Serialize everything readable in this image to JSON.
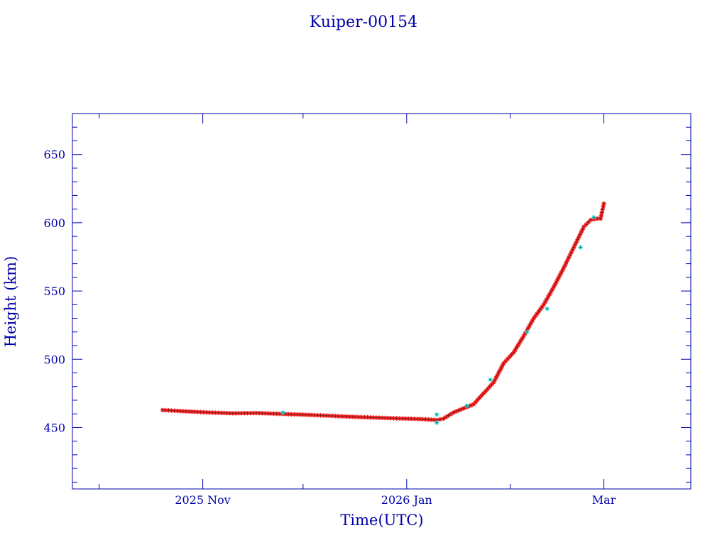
{
  "chart_data": {
    "type": "scatter",
    "title": "Kuiper-00154",
    "xlabel": "Time(UTC)",
    "ylabel": "Height (km)",
    "x_axis": {
      "type": "date",
      "range": [
        "2025-09-23",
        "2026-03-27"
      ],
      "major_ticks": [
        {
          "date": "2025-11-01",
          "label": "2025 Nov"
        },
        {
          "date": "2026-01-01",
          "label": "2026 Jan"
        },
        {
          "date": "2026-03-01",
          "label": "Mar"
        }
      ],
      "minor_ticks": [
        "2025-10-01",
        "2025-12-01",
        "2026-02-01"
      ]
    },
    "ylim": [
      405,
      680
    ],
    "y_major_ticks": [
      450,
      500,
      550,
      600,
      650
    ],
    "y_minor_step": 10,
    "grid": false,
    "colors": {
      "frame": "#0000aa",
      "primary": "#ee1111",
      "secondary": "#22dddd",
      "marker_center": "#333333"
    },
    "series": [
      {
        "marker": "asterisk",
        "color": "#ee1111",
        "points": [
          [
            "2025-10-20",
            462.8
          ],
          [
            "2025-10-27",
            461.8
          ],
          [
            "2025-11-03",
            461.0
          ],
          [
            "2025-11-10",
            460.4
          ],
          [
            "2025-11-17",
            460.6
          ],
          [
            "2025-11-24",
            460.0
          ],
          [
            "2025-12-01",
            459.4
          ],
          [
            "2025-12-08",
            458.7
          ],
          [
            "2025-12-15",
            457.9
          ],
          [
            "2025-12-22",
            457.3
          ],
          [
            "2025-12-29",
            456.7
          ],
          [
            "2026-01-05",
            456.2
          ],
          [
            "2026-01-10",
            455.5
          ],
          [
            "2026-01-12",
            456.5
          ],
          [
            "2026-01-15",
            461.0
          ],
          [
            "2026-01-18",
            464.0
          ],
          [
            "2026-01-21",
            467.0
          ],
          [
            "2026-01-24",
            475.0
          ],
          [
            "2026-01-27",
            483.0
          ],
          [
            "2026-01-30",
            497.0
          ],
          [
            "2026-02-02",
            505.0
          ],
          [
            "2026-02-05",
            517.0
          ],
          [
            "2026-02-08",
            530.0
          ],
          [
            "2026-02-11",
            540.0
          ],
          [
            "2026-02-14",
            553.0
          ],
          [
            "2026-02-17",
            567.0
          ],
          [
            "2026-02-20",
            582.0
          ],
          [
            "2026-02-23",
            597.0
          ],
          [
            "2026-02-25",
            602.0
          ],
          [
            "2026-02-27",
            603.0
          ],
          [
            "2026-02-28",
            603.0
          ],
          [
            "2026-03-01",
            614.0
          ]
        ]
      },
      {
        "marker": "asterisk",
        "color": "#22dddd",
        "points": [
          [
            "2025-11-25",
            461.0
          ],
          [
            "2026-01-10",
            459.5
          ],
          [
            "2026-01-10",
            453.5
          ],
          [
            "2026-01-19",
            466.0
          ],
          [
            "2026-01-26",
            485.0
          ],
          [
            "2026-02-06",
            520.0
          ],
          [
            "2026-02-12",
            537.0
          ],
          [
            "2026-02-22",
            582.0
          ],
          [
            "2026-02-26",
            604.0
          ]
        ]
      }
    ]
  }
}
